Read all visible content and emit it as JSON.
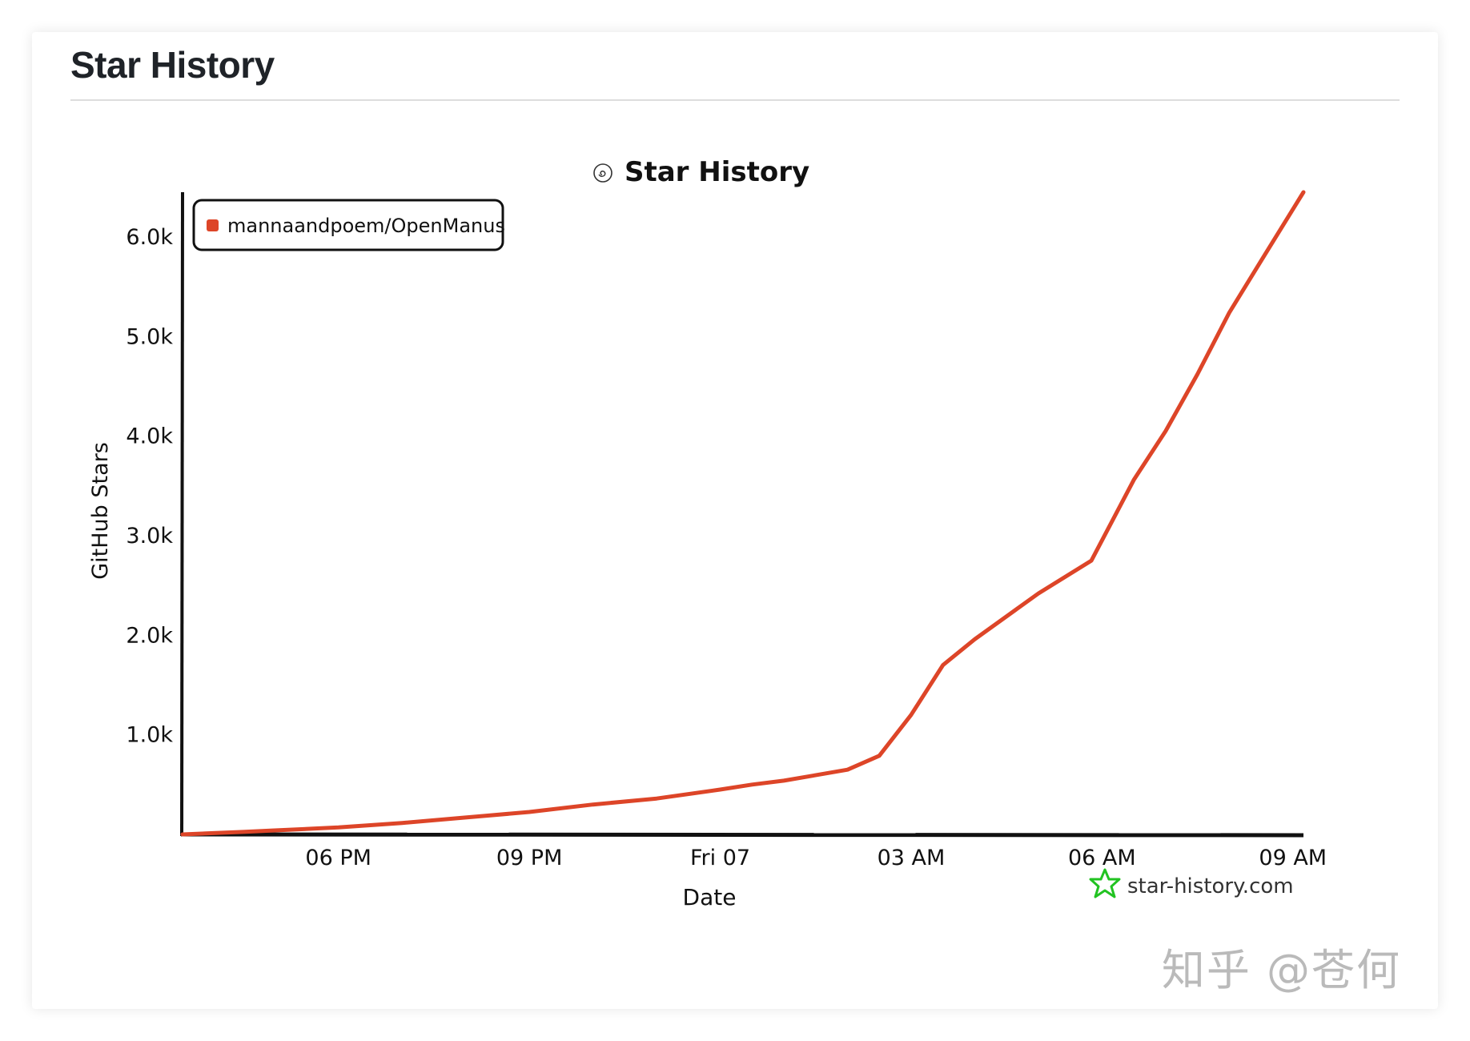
{
  "card": {
    "title": "Star History"
  },
  "chart_data": {
    "type": "line",
    "title": "Star History",
    "xlabel": "Date",
    "ylabel": "GitHub Stars",
    "x_tick_labels": [
      "06 PM",
      "09 PM",
      "Fri 07",
      "03 AM",
      "06 AM",
      "09 AM"
    ],
    "y_tick_labels": [
      "1.0k",
      "2.0k",
      "3.0k",
      "4.0k",
      "5.0k",
      "6.0k"
    ],
    "y_ticks": [
      1000,
      2000,
      3000,
      4000,
      5000,
      6000
    ],
    "xlim": [
      "2025-03-06 15:33",
      "2025-03-07 09:10"
    ],
    "ylim": [
      0,
      6450
    ],
    "grid": false,
    "legend_position": "top-left",
    "series": [
      {
        "name": "mannaandpoem/OpenManus",
        "color": "#dd4528",
        "points": [
          [
            "2025-03-06 15:33",
            0
          ],
          [
            "2025-03-06 16:30",
            25
          ],
          [
            "2025-03-06 17:00",
            40
          ],
          [
            "2025-03-06 18:00",
            70
          ],
          [
            "2025-03-06 19:00",
            115
          ],
          [
            "2025-03-06 20:00",
            170
          ],
          [
            "2025-03-06 21:00",
            225
          ],
          [
            "2025-03-06 22:00",
            300
          ],
          [
            "2025-03-06 23:00",
            360
          ],
          [
            "2025-03-07 00:00",
            450
          ],
          [
            "2025-03-07 00:30",
            500
          ],
          [
            "2025-03-07 01:00",
            540
          ],
          [
            "2025-03-07 02:00",
            650
          ],
          [
            "2025-03-07 02:30",
            790
          ],
          [
            "2025-03-07 03:00",
            1200
          ],
          [
            "2025-03-07 03:30",
            1700
          ],
          [
            "2025-03-07 04:00",
            1960
          ],
          [
            "2025-03-07 05:00",
            2420
          ],
          [
            "2025-03-07 05:50",
            2750
          ],
          [
            "2025-03-07 06:30",
            3560
          ],
          [
            "2025-03-07 07:00",
            4050
          ],
          [
            "2025-03-07 07:30",
            4620
          ],
          [
            "2025-03-07 08:00",
            5240
          ],
          [
            "2025-03-07 08:30",
            5760
          ],
          [
            "2025-03-07 09:10",
            6450
          ]
        ]
      }
    ],
    "credit": "star-history.com",
    "credit_icon": "star-icon",
    "title_icon": "github-icon"
  },
  "watermark": "知乎 @苍何"
}
